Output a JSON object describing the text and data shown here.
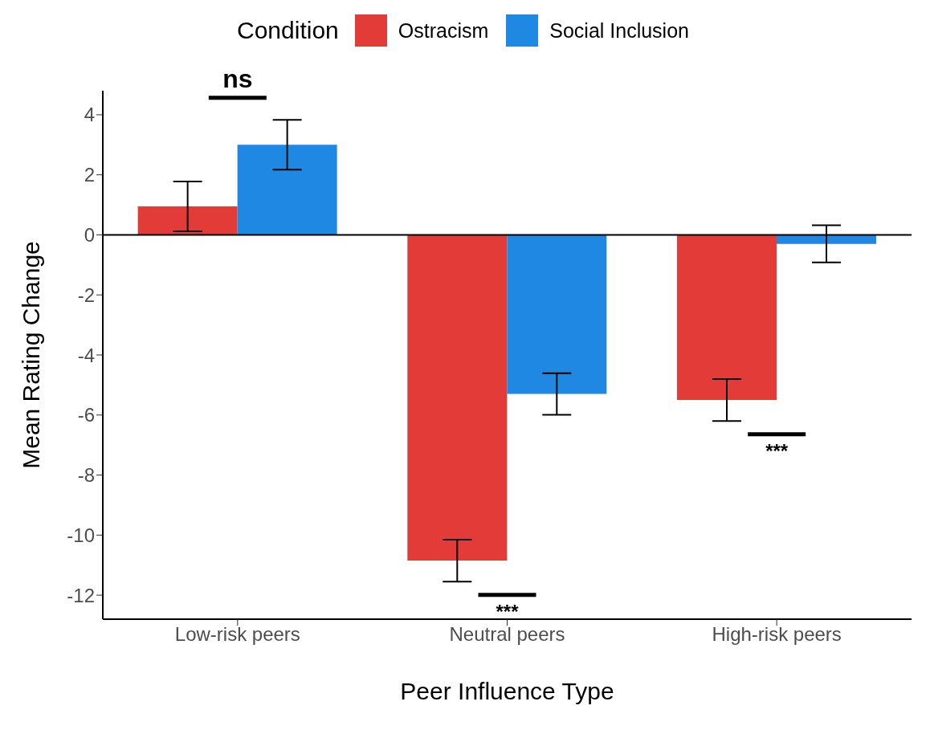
{
  "chart_data": {
    "type": "bar",
    "xlabel": "Peer Influence Type",
    "ylabel": "Mean Rating Change",
    "legend_title": "Condition",
    "categories": [
      "Low-risk peers",
      "Neutral peers",
      "High-risk peers"
    ],
    "series": [
      {
        "name": "Ostracism",
        "color": "#e33b37",
        "values": [
          0.95,
          -10.85,
          -5.5
        ],
        "errors": [
          0.83,
          0.7,
          0.7
        ]
      },
      {
        "name": "Social Inclusion",
        "color": "#1f88e3",
        "values": [
          3.0,
          -5.3,
          -0.3
        ],
        "errors": [
          0.83,
          0.69,
          0.62
        ]
      }
    ],
    "ylim": [
      -12.8,
      4.8
    ],
    "yticks": [
      -12,
      -10,
      -8,
      -6,
      -4,
      -2,
      0,
      2,
      4
    ],
    "grid": false,
    "legend": "top",
    "ref_lines": [
      {
        "axis": "y",
        "value": 0,
        "color": "#000000"
      }
    ],
    "annotations": [
      "ns",
      "***",
      "***"
    ]
  }
}
